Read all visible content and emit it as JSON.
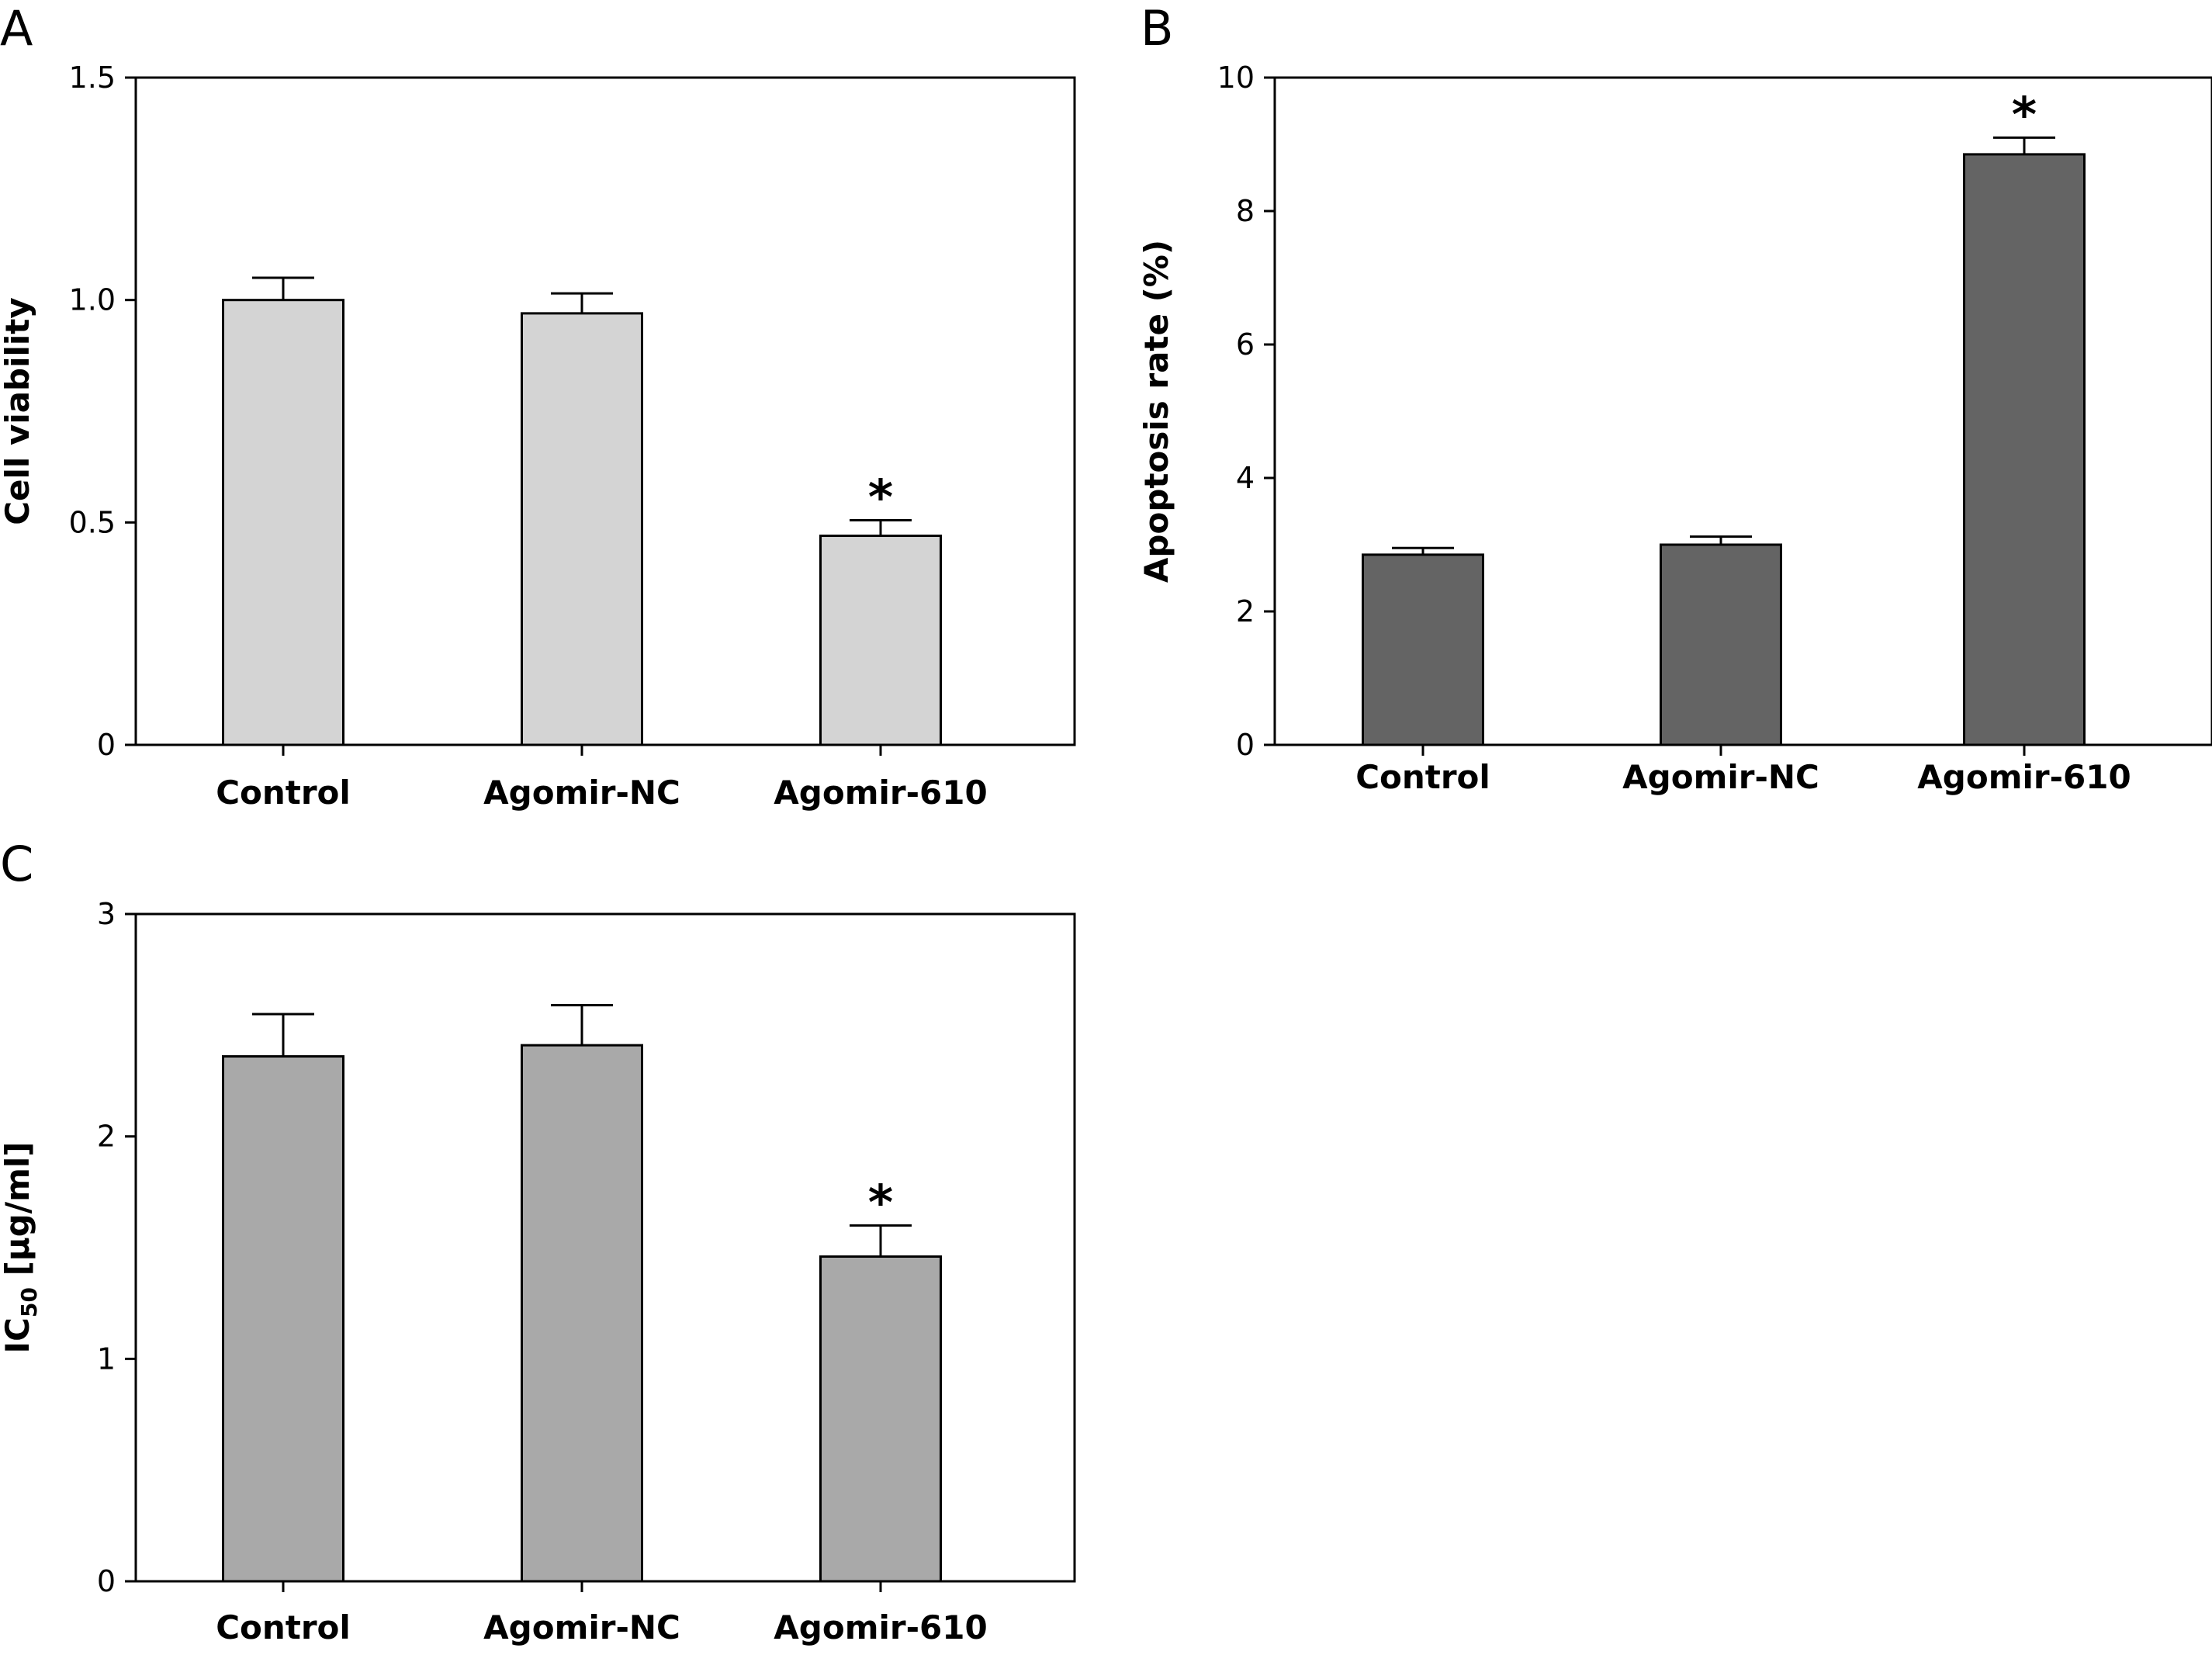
{
  "chart_data": [
    {
      "panel": "A",
      "type": "bar",
      "categories": [
        "Control",
        "Agomir-NC",
        "Agomir-610"
      ],
      "values": [
        1.0,
        0.97,
        0.47
      ],
      "errors": [
        0.05,
        0.045,
        0.035
      ],
      "significance": [
        "",
        "",
        "*"
      ],
      "xlabel": "",
      "ylabel": "Cell viability",
      "ylim": [
        0,
        1.5
      ],
      "yticks": [
        "0",
        "0.5",
        "1.0",
        "1.5"
      ],
      "ytick_values": [
        0,
        0.5,
        1.0,
        1.5
      ],
      "bar_color": "#d4d4d4",
      "grid": false
    },
    {
      "panel": "B",
      "type": "bar",
      "categories": [
        "Control",
        "Agomir-NC",
        "Agomir-610"
      ],
      "values": [
        2.85,
        3.0,
        8.85
      ],
      "errors": [
        0.1,
        0.12,
        0.25
      ],
      "significance": [
        "",
        "",
        "*"
      ],
      "xlabel": "",
      "ylabel": "Apoptosis rate (%)",
      "ylim": [
        0,
        10
      ],
      "yticks": [
        "0",
        "2",
        "4",
        "6",
        "8",
        "10"
      ],
      "ytick_values": [
        0,
        2,
        4,
        6,
        8,
        10
      ],
      "bar_color": "#646464",
      "grid": false
    },
    {
      "panel": "C",
      "type": "bar",
      "categories": [
        "Control",
        "Agomir-NC",
        "Agomir-610"
      ],
      "values": [
        2.36,
        2.41,
        1.46
      ],
      "errors": [
        0.19,
        0.18,
        0.14
      ],
      "significance": [
        "",
        "",
        "*"
      ],
      "xlabel": "",
      "ylabel_main": "IC",
      "ylabel_sub": "50",
      "ylabel_unit": " [µg/ml]",
      "ylim": [
        0,
        3
      ],
      "yticks": [
        "0",
        "1",
        "2",
        "3"
      ],
      "ytick_values": [
        0,
        1,
        2,
        3
      ],
      "bar_color": "#a9a9a9",
      "grid": false
    }
  ]
}
